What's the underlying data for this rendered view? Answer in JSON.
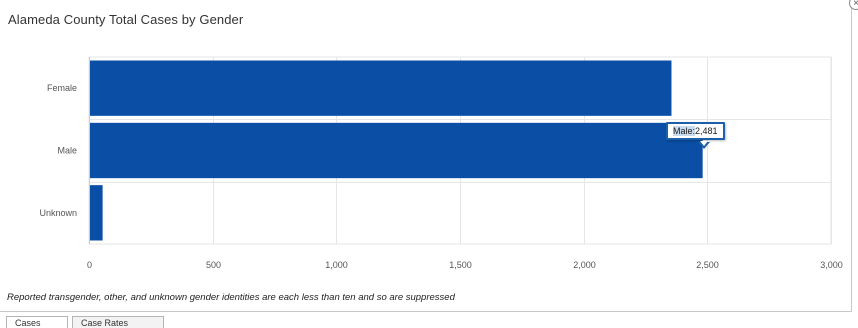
{
  "panel": {
    "title": "Alameda County Total Cases by Gender",
    "close_icon_glyph": "×",
    "footnote": "Reported transgender, other, and unknown gender identities are each less than ten and so are suppressed"
  },
  "tooltip": {
    "category": "Male:",
    "value": "2,481"
  },
  "tabs": [
    {
      "label": "Cases"
    },
    {
      "label": "Case Rates"
    }
  ],
  "colors": {
    "bar": "#0a4fa5",
    "grid": "#e6e6e6",
    "axis": "#cccccc"
  },
  "chart_data": {
    "type": "bar",
    "orientation": "horizontal",
    "title": "Alameda County Total Cases by Gender",
    "categories": [
      "Female",
      "Male",
      "Unknown"
    ],
    "values": [
      2355,
      2481,
      55
    ],
    "xlim": [
      0,
      3000
    ],
    "xticks": [
      0,
      500,
      1000,
      1500,
      2000,
      2500,
      3000
    ],
    "xtick_labels": [
      "0",
      "500",
      "1,000",
      "1,500",
      "2,000",
      "2,500",
      "3,000"
    ],
    "grid": true
  }
}
